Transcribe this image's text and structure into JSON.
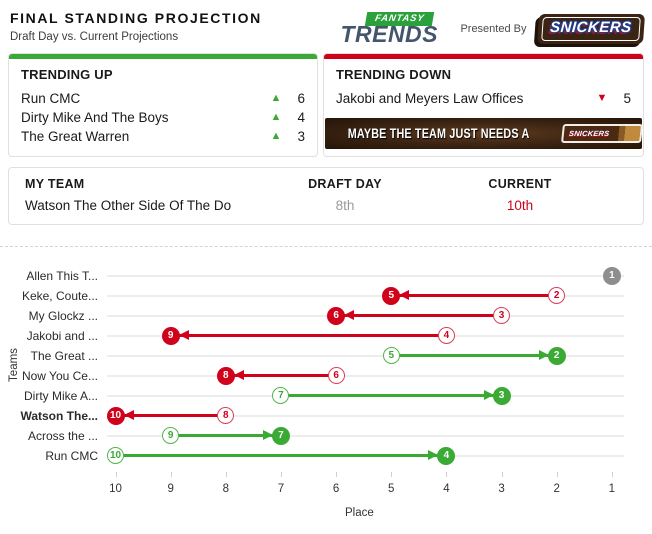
{
  "header": {
    "title": "FINAL STANDING PROJECTION",
    "subtitle": "Draft Day vs. Current Projections",
    "logo": {
      "line1": "FANTASY",
      "line2": "TRENDS"
    },
    "presented_by": "Presented By",
    "sponsor": "SNICKERS"
  },
  "icons": {
    "up_triangle": "▲",
    "down_triangle": "▼"
  },
  "colors": {
    "green": "#3aaa35",
    "red": "#d0021b",
    "gray": "#8e8e8e"
  },
  "trending_up": {
    "title": "TRENDING UP",
    "items": [
      {
        "team": "Run CMC",
        "change": "6"
      },
      {
        "team": "Dirty Mike And The Boys",
        "change": "4"
      },
      {
        "team": "The Great Warren",
        "change": "3"
      }
    ]
  },
  "trending_down": {
    "title": "TRENDING DOWN",
    "items": [
      {
        "team": "Jakobi and Meyers Law Offices",
        "change": "5"
      }
    ],
    "banner": {
      "text": "MAYBE THE TEAM JUST NEEDS A",
      "sponsor": "SNICKERS"
    }
  },
  "my_team": {
    "col1": "MY TEAM",
    "col2": "DRAFT DAY",
    "col3": "CURRENT",
    "name": "Watson The Other Side Of The Do",
    "draft_day": "8th",
    "current": "10th"
  },
  "chart_data": {
    "type": "scatter",
    "variant": "dumbbell-arrow",
    "title": "Final Standing Projection",
    "xlabel": "Place",
    "ylabel": "Teams",
    "x_ticks": [
      10,
      9,
      8,
      7,
      6,
      5,
      4,
      3,
      2,
      1
    ],
    "x_axis_reversed": true,
    "grid": true,
    "legend": false,
    "categories": [
      "Allen This T...",
      "Keke, Coute...",
      "My Glockz ...",
      "Jakobi and ...",
      "The Great ...",
      "Now You Ce...",
      "Dirty Mike A...",
      "Watson The...",
      "Across the ...",
      "Run CMC"
    ],
    "series": [
      {
        "name": "Draft Day",
        "values": [
          1,
          2,
          3,
          4,
          5,
          6,
          7,
          8,
          9,
          10
        ]
      },
      {
        "name": "Current",
        "values": [
          1,
          5,
          6,
          9,
          2,
          8,
          3,
          10,
          7,
          4
        ]
      }
    ],
    "teams": [
      {
        "label": "Allen This T...",
        "draft": 1,
        "current": 1,
        "direction": "none",
        "is_my_team": false
      },
      {
        "label": "Keke, Coute...",
        "draft": 2,
        "current": 5,
        "direction": "down",
        "is_my_team": false
      },
      {
        "label": "My Glockz ...",
        "draft": 3,
        "current": 6,
        "direction": "down",
        "is_my_team": false
      },
      {
        "label": "Jakobi and ...",
        "draft": 4,
        "current": 9,
        "direction": "down",
        "is_my_team": false
      },
      {
        "label": "The Great ...",
        "draft": 5,
        "current": 2,
        "direction": "up",
        "is_my_team": false
      },
      {
        "label": "Now You Ce...",
        "draft": 6,
        "current": 8,
        "direction": "down",
        "is_my_team": false
      },
      {
        "label": "Dirty Mike A...",
        "draft": 7,
        "current": 3,
        "direction": "up",
        "is_my_team": false
      },
      {
        "label": "Watson The...",
        "draft": 8,
        "current": 10,
        "direction": "down",
        "is_my_team": true
      },
      {
        "label": "Across the ...",
        "draft": 9,
        "current": 7,
        "direction": "up",
        "is_my_team": false
      },
      {
        "label": "Run CMC",
        "draft": 10,
        "current": 4,
        "direction": "up",
        "is_my_team": false
      }
    ]
  }
}
